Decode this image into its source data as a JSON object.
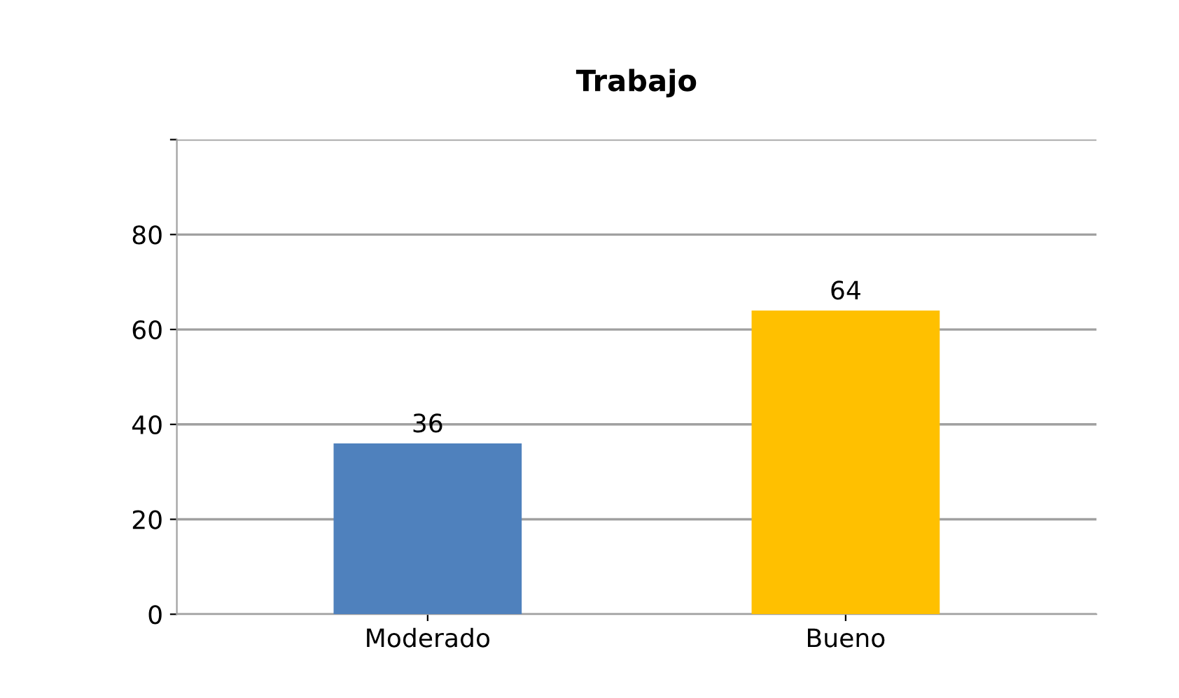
{
  "chart_data": {
    "type": "bar",
    "title": "Trabajo",
    "categories": [
      "Moderado",
      "Bueno"
    ],
    "values": [
      36,
      64
    ],
    "colors": [
      "#4f81bd",
      "#ffc000"
    ],
    "ylim": [
      0,
      100
    ],
    "yticks": [
      0,
      20,
      40,
      60,
      80,
      {
        "value": 100,
        "label": null
      }
    ],
    "grid": "y",
    "data_labels": true
  }
}
